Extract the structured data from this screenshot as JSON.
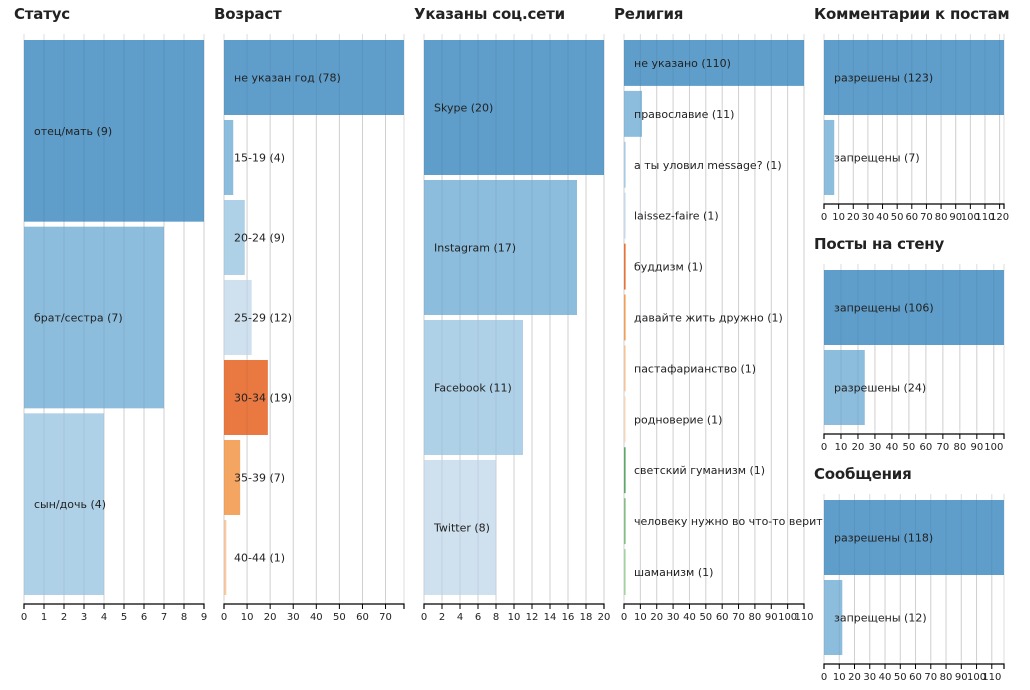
{
  "chart_data": [
    {
      "id": "status",
      "type": "bar",
      "orientation": "horizontal",
      "title": "Статус",
      "categories": [
        "отец/мать",
        "брат/сестра",
        "сын/дочь"
      ],
      "values": [
        9,
        7,
        4
      ],
      "colors": [
        "#5a9bc9",
        "#88bbdc",
        "#acd0e6"
      ],
      "xlim": [
        0,
        9
      ],
      "ticks": [
        0,
        1,
        2,
        3,
        4,
        5,
        6,
        7,
        8,
        9
      ],
      "grid": true
    },
    {
      "id": "age",
      "type": "bar",
      "orientation": "horizontal",
      "title": "Возраст",
      "categories": [
        "не указан год",
        "15-19",
        "20-24",
        "25-29",
        "30-34",
        "35-39",
        "40-44"
      ],
      "values": [
        78,
        4,
        9,
        12,
        19,
        7,
        1
      ],
      "colors": [
        "#5a9bc9",
        "#88bbdc",
        "#acd0e6",
        "#cddfee",
        "#e8743b",
        "#f5a25d",
        "#f9c8a0"
      ],
      "xlim": [
        0,
        78
      ],
      "ticks": [
        0,
        10,
        20,
        30,
        40,
        50,
        60,
        70
      ],
      "grid": true
    },
    {
      "id": "social",
      "type": "bar",
      "orientation": "horizontal",
      "title": "Указаны соц.сети",
      "categories": [
        "Skype",
        "Instagram",
        "Facebook",
        "Twitter"
      ],
      "values": [
        20,
        17,
        11,
        8
      ],
      "colors": [
        "#5a9bc9",
        "#88bbdc",
        "#acd0e6",
        "#cddfee"
      ],
      "xlim": [
        0,
        20
      ],
      "ticks": [
        0,
        2,
        4,
        6,
        8,
        10,
        12,
        14,
        16,
        18,
        20
      ],
      "grid": true
    },
    {
      "id": "religion",
      "type": "bar",
      "orientation": "horizontal",
      "title": "Религия",
      "categories": [
        "не указано",
        "православие",
        "а ты уловил message?",
        "laissez-faire",
        "буддизм",
        "давайте жить дружно",
        "пастафарианство",
        "родноверие",
        "светский гуманизм",
        "человеку нужно во что-то верит",
        "шаманизм"
      ],
      "values": [
        110,
        11,
        1,
        1,
        1,
        1,
        1,
        1,
        1,
        1,
        1
      ],
      "labels": [
        "не указано (110)",
        "православие (11)",
        "а ты уловил message? (1)",
        "laissez-faire (1)",
        "буддизм (1)",
        "давайте жить дружно (1)",
        "пастафарианство (1)",
        "родноверие (1)",
        "светский гуманизм (1)",
        "человеку нужно во что-то верит",
        "шаманизм (1)"
      ],
      "colors": [
        "#5a9bc9",
        "#88bbdc",
        "#acd0e6",
        "#cddfee",
        "#e8743b",
        "#f5a25d",
        "#f9c8a0",
        "#fbdcc4",
        "#5fa86a",
        "#86c187",
        "#a9d6a5"
      ],
      "xlim": [
        0,
        110
      ],
      "ticks": [
        0,
        10,
        20,
        30,
        40,
        50,
        60,
        70,
        80,
        90,
        100,
        110
      ],
      "grid": true
    },
    {
      "id": "comments",
      "type": "bar",
      "orientation": "horizontal",
      "title": "Комментарии к постам",
      "categories": [
        "разрешены",
        "запрещены"
      ],
      "values": [
        123,
        7
      ],
      "colors": [
        "#5a9bc9",
        "#88bbdc"
      ],
      "xlim": [
        0,
        123
      ],
      "ticks": [
        0,
        10,
        20,
        30,
        40,
        50,
        60,
        70,
        80,
        90,
        100,
        110,
        120
      ],
      "grid": true
    },
    {
      "id": "wallposts",
      "type": "bar",
      "orientation": "horizontal",
      "title": "Посты на стену",
      "categories": [
        "запрещены",
        "разрешены"
      ],
      "values": [
        106,
        24
      ],
      "colors": [
        "#5a9bc9",
        "#88bbdc"
      ],
      "xlim": [
        0,
        106
      ],
      "ticks": [
        0,
        10,
        20,
        30,
        40,
        50,
        60,
        70,
        80,
        90,
        100
      ],
      "grid": true
    },
    {
      "id": "messages",
      "type": "bar",
      "orientation": "horizontal",
      "title": "Сообщения",
      "categories": [
        "разрешены",
        "запрещены"
      ],
      "values": [
        118,
        12
      ],
      "colors": [
        "#5a9bc9",
        "#88bbdc"
      ],
      "xlim": [
        0,
        118
      ],
      "ticks": [
        0,
        10,
        20,
        30,
        40,
        50,
        60,
        70,
        80,
        90,
        100,
        110
      ],
      "grid": true
    }
  ]
}
